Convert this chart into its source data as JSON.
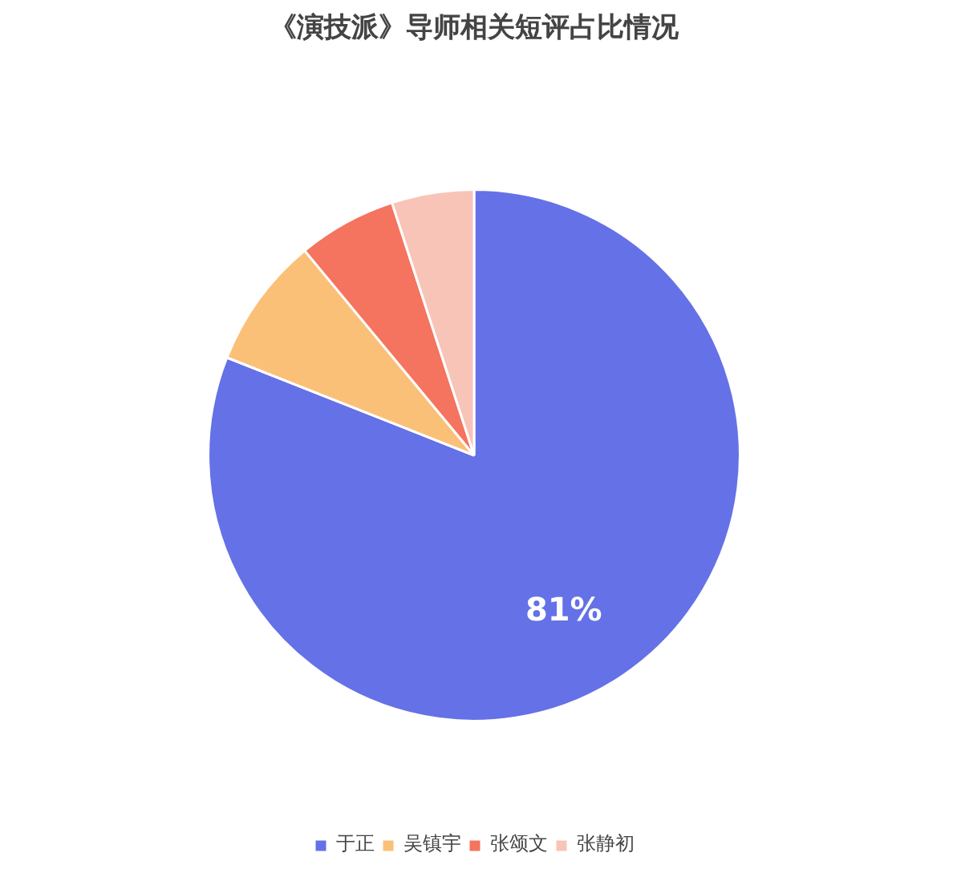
{
  "chart_data": {
    "type": "pie",
    "title": "《演技派》导师相关短评占比情况",
    "categories": [
      "于正",
      "吴镇宇",
      "张颂文",
      "张静初"
    ],
    "values": [
      81,
      8,
      6,
      5
    ],
    "colors": [
      "#6571e6",
      "#fbc078",
      "#f4745f",
      "#f8c4b8"
    ],
    "value_labels": [
      "81%",
      null,
      null,
      null
    ],
    "legend": "bottom"
  }
}
